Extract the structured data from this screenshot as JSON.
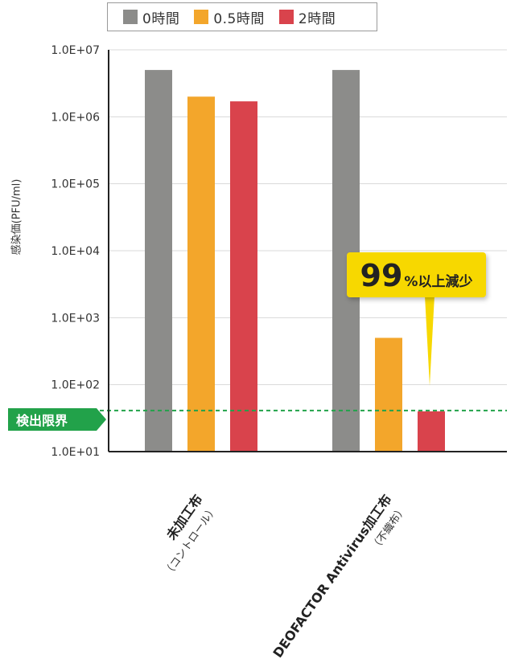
{
  "chart_data": {
    "type": "bar",
    "yscale": "log",
    "ylim": [
      10,
      10000000
    ],
    "ylabel": "感染価(PFU/ml)",
    "yticks": [
      "1.0E+01",
      "1.0E+02",
      "1.0E+03",
      "1.0E+04",
      "1.0E+05",
      "1.0E+06",
      "1.0E+07"
    ],
    "ytick_values": [
      10,
      100,
      1000,
      10000,
      100000,
      1000000,
      10000000
    ],
    "grid": "horizontal",
    "legend_position": "top",
    "categories": [
      {
        "main": "未加工布",
        "sub": "（コントロール）"
      },
      {
        "main": "DEOFACTOR Antivirus加工布",
        "sub": "（不織布）"
      }
    ],
    "series": [
      {
        "name": "0時間",
        "color": "#8c8c8a",
        "values": [
          5000000,
          5000000
        ]
      },
      {
        "name": "0.5時間",
        "color": "#f3a62b",
        "values": [
          2000000,
          500
        ]
      },
      {
        "name": "2時間",
        "color": "#d9434c",
        "values": [
          1700000,
          40
        ]
      }
    ],
    "detection_limit": {
      "label": "検出限界",
      "value": 40,
      "color": "#22a24a"
    },
    "annotation": {
      "big": "99",
      "pct": "%",
      "rest": "以上減少",
      "color": "#f7d800"
    }
  }
}
